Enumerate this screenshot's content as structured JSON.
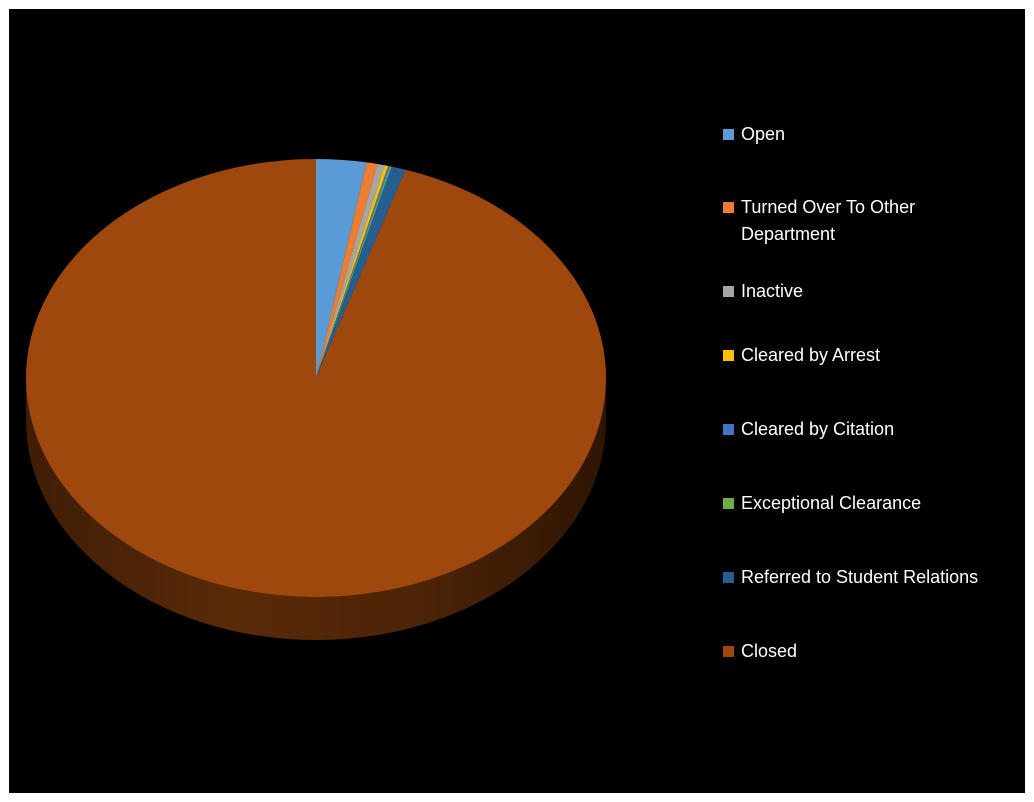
{
  "chart_data": {
    "type": "pie",
    "title": "",
    "legend_position": "right",
    "slices": [
      {
        "label": "Open",
        "value": 2.8,
        "color": "#5b9bd5"
      },
      {
        "label": "Turned Over To Other Department",
        "value": 0.6,
        "color": "#ed7d31"
      },
      {
        "label": "Inactive",
        "value": 0.4,
        "color": "#a5a5a5"
      },
      {
        "label": "Cleared by Arrest",
        "value": 0.2,
        "color": "#ffc000"
      },
      {
        "label": "Cleared by Citation",
        "value": 0.1,
        "color": "#4472c4"
      },
      {
        "label": "Exceptional Clearance",
        "value": 0.1,
        "color": "#70ad47"
      },
      {
        "label": "Referred to Student Relations",
        "value": 0.8,
        "color": "#255e91"
      },
      {
        "label": "Closed",
        "value": 95.0,
        "color": "#9e480e"
      }
    ]
  }
}
